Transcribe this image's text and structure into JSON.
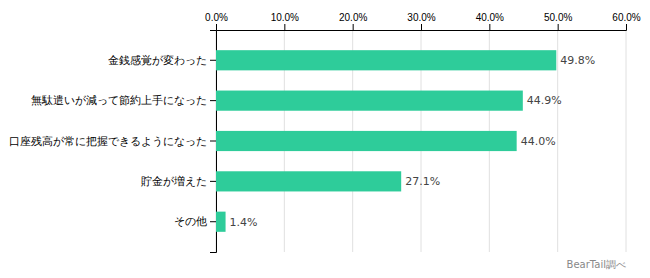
{
  "chart_data": {
    "type": "bar",
    "orientation": "horizontal",
    "categories": [
      "その他",
      "貯金が増えた",
      "口座残高が常に把握できるようになった",
      "無駄遣いが減って節約上手になった",
      "金銭感覚が変わった"
    ],
    "values": [
      1.4,
      27.1,
      44.0,
      44.9,
      49.8
    ],
    "value_labels": [
      "1.4%",
      "27.1%",
      "44.0%",
      "44.9%",
      "49.8%"
    ],
    "data_labels": true,
    "color": "#2ecc9a",
    "xlim": [
      0,
      60
    ],
    "xticks": [
      {
        "value": 0,
        "label": "0.0%"
      },
      {
        "value": 10,
        "label": "10.0%"
      },
      {
        "value": 20,
        "label": "20.0%"
      },
      {
        "value": 30,
        "label": "30.0%"
      },
      {
        "value": 40,
        "label": "40.0%"
      },
      {
        "value": 50,
        "label": "50.0%"
      },
      {
        "value": 60,
        "label": "60.0%"
      }
    ],
    "grid": true,
    "annotations": [
      "BearTail調べ"
    ]
  }
}
